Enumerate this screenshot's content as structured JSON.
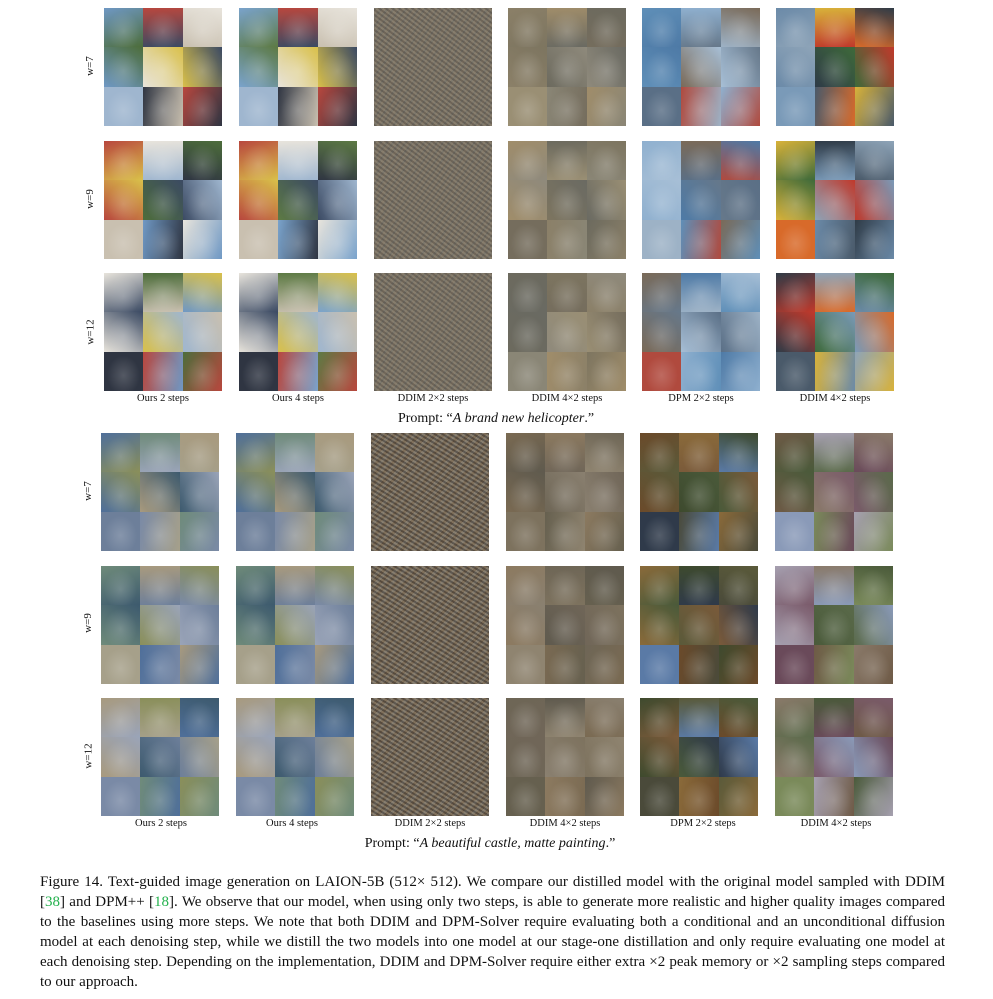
{
  "panels": [
    {
      "row_labels": [
        "w=7",
        "w=9",
        "w=12"
      ],
      "column_labels": [
        "Ours 2 steps",
        "Ours 4 steps",
        "DDIM 2×2 steps",
        "DDIM 4×2 steps",
        "DPM 2×2 steps",
        "DDIM 4×2 steps"
      ],
      "prompt_prefix": "Prompt: “",
      "prompt_text": "A brand new helicopter",
      "prompt_suffix": ".”"
    },
    {
      "row_labels": [
        "w=7",
        "w=9",
        "w=12"
      ],
      "column_labels": [
        "Ours 2 steps",
        "Ours 4 steps",
        "DDIM 2×2 steps",
        "DDIM 4×2 steps",
        "DPM 2×2 steps",
        "DDIM 4×2 steps"
      ],
      "prompt_prefix": "Prompt: “",
      "prompt_text": "A beautiful castle, matte painting",
      "prompt_suffix": ".”"
    }
  ],
  "caption": {
    "part1": "Figure 14. Text-guided image generation on LAION-5B (512× 512). We compare our distilled model with the original model sampled with DDIM [",
    "ref1": "38",
    "part2": "] and DPM++ [",
    "ref2": "18",
    "part3": "]. We observe that our model, when using only two steps, is able to generate more realistic and higher quality images compared to the baselines using more steps. We note that both DDIM and DPM-Solver require evaluating both a conditional and an unconditional diffusion model at each denoising step, while we distill the two models into one model at our stage-one distillation and only require evaluating one model at each denoising step. Depending on the implementation, DDIM and DPM-Solver require either extra ×2 peak memory or ×2 sampling steps compared to our approach."
  }
}
